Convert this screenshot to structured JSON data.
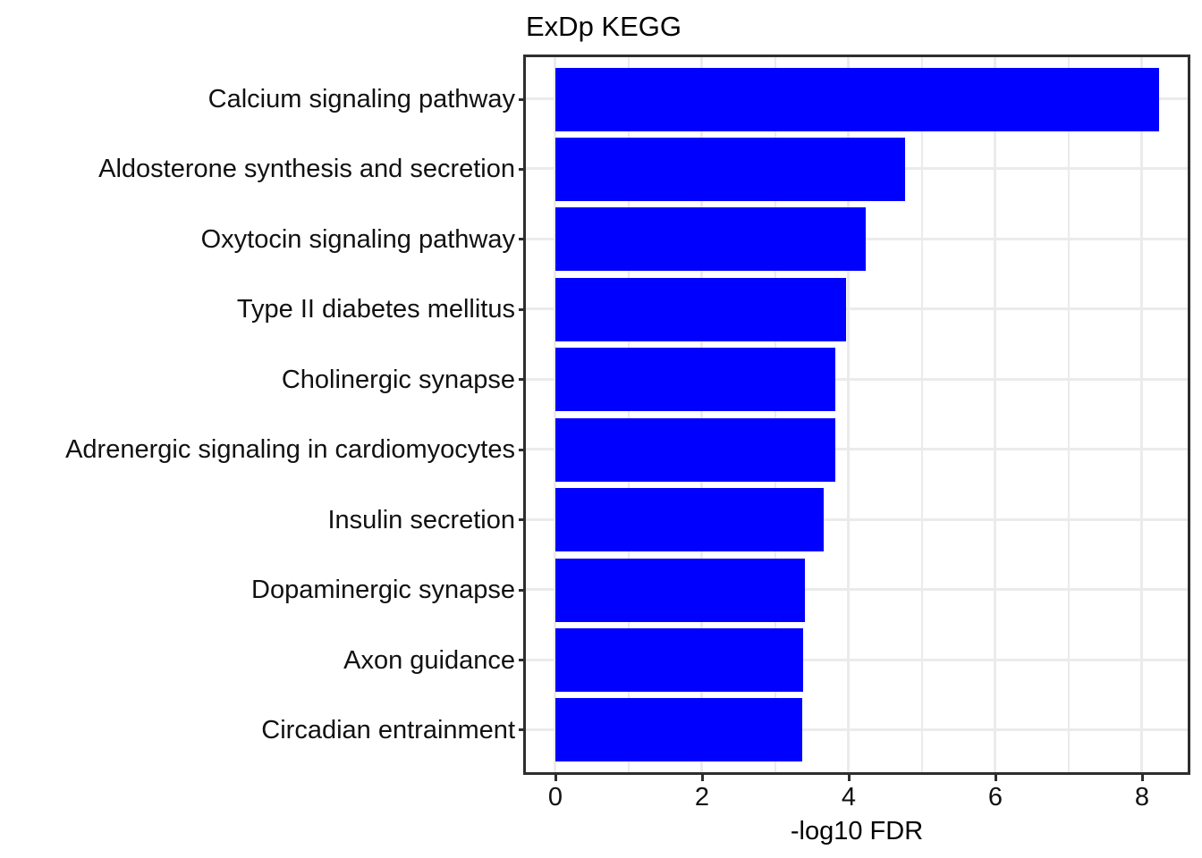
{
  "chart_data": {
    "type": "bar",
    "orientation": "horizontal",
    "title": "ExDp KEGG",
    "xlabel": "-log10 FDR",
    "ylabel": "",
    "categories": [
      "Calcium signaling pathway",
      "Aldosterone synthesis and secretion",
      "Oxytocin signaling pathway",
      "Type II diabetes mellitus",
      "Cholinergic synapse",
      "Adrenergic signaling in cardiomyocytes",
      "Insulin secretion",
      "Dopaminergic synapse",
      "Axon guidance",
      "Circadian entrainment"
    ],
    "values": [
      8.23,
      4.77,
      4.23,
      3.96,
      3.82,
      3.82,
      3.66,
      3.4,
      3.38,
      3.37
    ],
    "xticks": [
      0,
      2,
      4,
      6,
      8
    ],
    "minor_xticks": [
      1,
      3,
      5,
      7
    ],
    "xlim": [
      -0.41,
      8.64
    ],
    "grid": true,
    "legend": false,
    "bar_color": "#0000ff",
    "gridline_color": "#ebebeb",
    "panel_border_color": "#2e2e2e",
    "tick_color": "#2e2e2e",
    "text_color": "#111111",
    "background_color": "#ffffff"
  }
}
